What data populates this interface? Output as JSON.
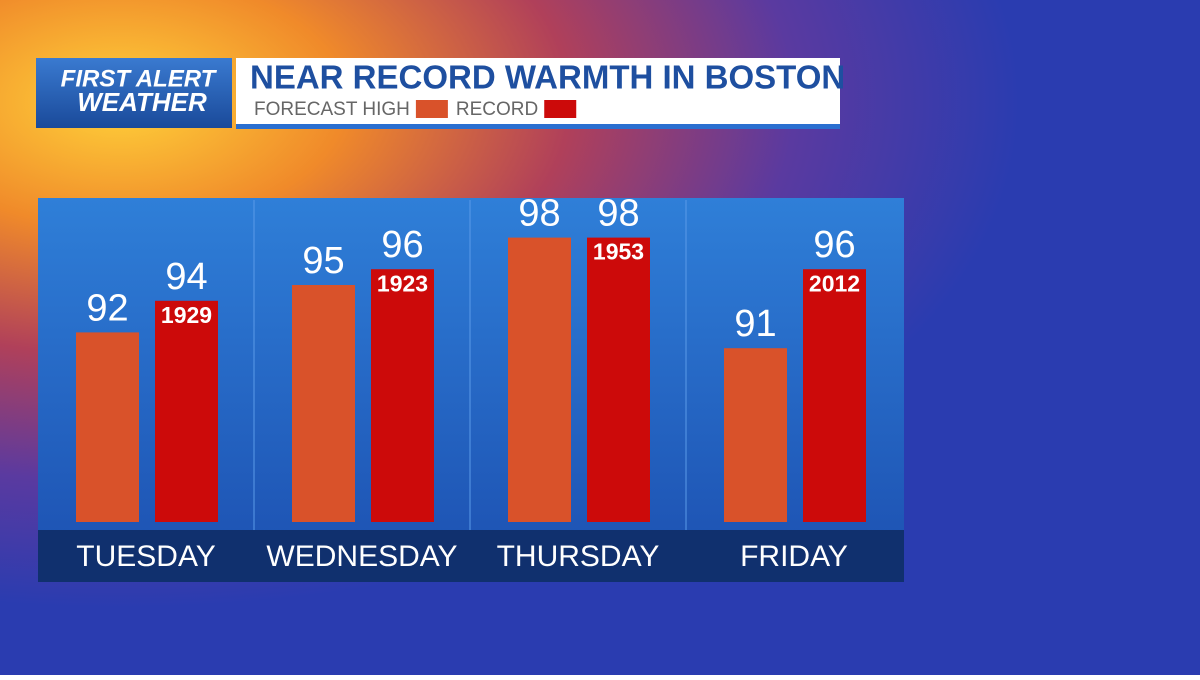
{
  "brand": {
    "line1": "FIRST ALERT",
    "line2": "WEATHER"
  },
  "chart_data": {
    "type": "bar",
    "title": "NEAR RECORD WARMTH IN BOSTON",
    "categories": [
      "TUESDAY",
      "WEDNESDAY",
      "THURSDAY",
      "FRIDAY"
    ],
    "series": [
      {
        "name": "FORECAST HIGH",
        "color": "#d9522a",
        "values": [
          92,
          95,
          98,
          91
        ]
      },
      {
        "name": "RECORD",
        "color": "#cc0a0a",
        "values": [
          94,
          96,
          98,
          96
        ],
        "years": [
          "1929",
          "1923",
          "1953",
          "2012"
        ]
      }
    ],
    "ylim": [
      80,
      100
    ]
  }
}
